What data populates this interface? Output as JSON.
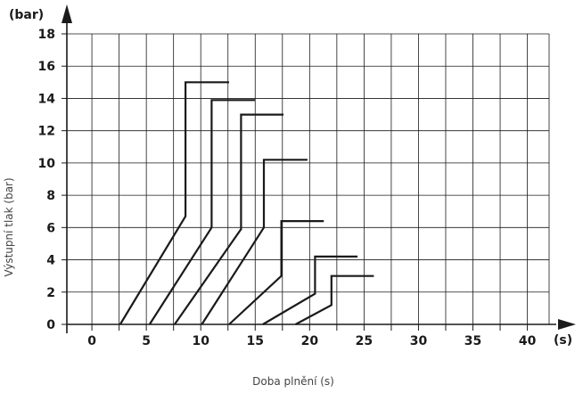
{
  "chart_data": {
    "type": "line",
    "title": "",
    "xlabel": "Doba plnění (s)",
    "ylabel": "Výstupní tlak (bar)",
    "x_unit": "(s)",
    "y_unit": "(bar)",
    "xlim": [
      -2.3,
      42
    ],
    "ylim": [
      0,
      18
    ],
    "x_ticks": [
      0,
      5,
      10,
      15,
      20,
      25,
      30,
      35,
      40
    ],
    "y_ticks": [
      0,
      2,
      4,
      6,
      8,
      10,
      12,
      14,
      16,
      18
    ],
    "x_tick_labels": [
      "0",
      "5",
      "10",
      "15",
      "20",
      "25",
      "30",
      "35",
      "40"
    ],
    "y_tick_labels": [
      "0",
      "2",
      "4",
      "6",
      "8",
      "10",
      "12",
      "14",
      "16",
      "18"
    ],
    "grid": true,
    "series": [
      {
        "points": [
          [
            2.6,
            0
          ],
          [
            8.6,
            6.7
          ],
          [
            8.6,
            15
          ],
          [
            12.6,
            15
          ]
        ]
      },
      {
        "points": [
          [
            5.3,
            0
          ],
          [
            11.0,
            6.0
          ],
          [
            11.0,
            13.9
          ],
          [
            15.0,
            13.9
          ]
        ]
      },
      {
        "points": [
          [
            7.6,
            0
          ],
          [
            13.7,
            5.9
          ],
          [
            13.7,
            13.0
          ],
          [
            17.6,
            13.0
          ]
        ]
      },
      {
        "points": [
          [
            10.1,
            0
          ],
          [
            15.8,
            6.0
          ],
          [
            15.8,
            10.2
          ],
          [
            19.8,
            10.2
          ]
        ]
      },
      {
        "points": [
          [
            12.6,
            0
          ],
          [
            17.4,
            3.0
          ],
          [
            17.4,
            6.4
          ],
          [
            21.3,
            6.4
          ]
        ]
      },
      {
        "points": [
          [
            15.7,
            0
          ],
          [
            20.5,
            1.9
          ],
          [
            20.5,
            4.2
          ],
          [
            24.4,
            4.2
          ]
        ]
      },
      {
        "points": [
          [
            18.7,
            0
          ],
          [
            22.0,
            1.2
          ],
          [
            22.0,
            3.0
          ],
          [
            25.9,
            3.0
          ]
        ]
      }
    ],
    "colors": {
      "line": "#1a1a1a",
      "grid": "#1a1a1a",
      "text": "#1a1a1a",
      "axis_title": "#444444"
    }
  }
}
